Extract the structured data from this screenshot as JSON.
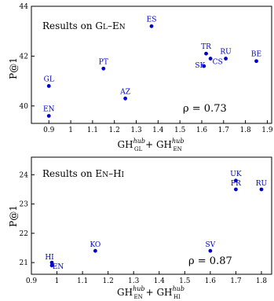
{
  "chart_data": [
    {
      "type": "scatter",
      "title": "Results on GL–EN",
      "xlabel": "GH_GL^hub + GH_EN^hub",
      "ylabel": "P@1",
      "xlim": [
        0.82,
        1.92
      ],
      "ylim": [
        39.3,
        44.0
      ],
      "x_ticks": [
        "0.9",
        "1",
        "1.1",
        "1.2",
        "1.3",
        "1.4",
        "1.5",
        "1.6",
        "1.7",
        "1.8",
        "1.9"
      ],
      "y_ticks": [
        "40",
        "42",
        "44"
      ],
      "annotation": "ρ = 0.73",
      "grid": false,
      "color": "#0000cc",
      "points": [
        {
          "label": "GL",
          "x": 0.9,
          "y": 40.8
        },
        {
          "label": "EN",
          "x": 0.9,
          "y": 39.6
        },
        {
          "label": "PT",
          "x": 1.15,
          "y": 41.5
        },
        {
          "label": "AZ",
          "x": 1.25,
          "y": 40.3
        },
        {
          "label": "ES",
          "x": 1.37,
          "y": 43.2
        },
        {
          "label": "TR",
          "x": 1.62,
          "y": 42.1
        },
        {
          "label": "SK",
          "x": 1.61,
          "y": 41.6
        },
        {
          "label": "CS",
          "x": 1.64,
          "y": 41.9
        },
        {
          "label": "RU",
          "x": 1.71,
          "y": 41.9
        },
        {
          "label": "BE",
          "x": 1.85,
          "y": 41.8
        }
      ]
    },
    {
      "type": "scatter",
      "title": "Results on EN–HI",
      "xlabel": "GH_EN^hub + GH_HI^hub",
      "ylabel": "P@1",
      "xlim": [
        0.9,
        1.84
      ],
      "ylim": [
        20.6,
        24.6
      ],
      "x_ticks": [
        "0.9",
        "1",
        "1.1",
        "1.2",
        "1.3",
        "1.4",
        "1.5",
        "1.6",
        "1.7",
        "1.8"
      ],
      "y_ticks": [
        "21",
        "22",
        "23",
        "24"
      ],
      "annotation": "ρ = 0.87",
      "grid": false,
      "color": "#0000cc",
      "points": [
        {
          "label": "HI",
          "x": 0.98,
          "y": 21.0
        },
        {
          "label": "EN",
          "x": 0.98,
          "y": 20.9
        },
        {
          "label": "KO",
          "x": 1.15,
          "y": 21.4
        },
        {
          "label": "SV",
          "x": 1.6,
          "y": 21.4
        },
        {
          "label": "UK",
          "x": 1.7,
          "y": 23.8
        },
        {
          "label": "FR",
          "x": 1.7,
          "y": 23.5
        },
        {
          "label": "RU",
          "x": 1.8,
          "y": 23.5
        }
      ]
    }
  ]
}
